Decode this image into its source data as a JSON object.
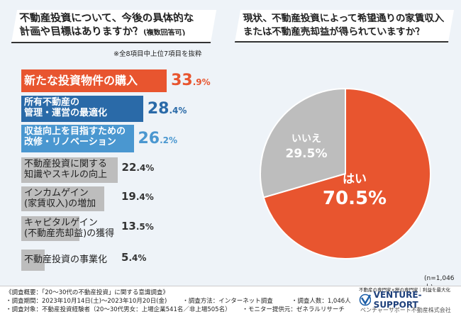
{
  "left": {
    "title_line1": "不動産投資について、今後の具体的な",
    "title_line2": "計画や目標はありますか？",
    "title_suffix": "(複数回答可)",
    "note": "※全8項目中上位7項目を抜粋"
  },
  "right": {
    "title_line1": "現状、不動産投資によって希望通りの家賃収入",
    "title_line2": "または不動産売却益が得られていますか？",
    "n": "(n=1,046人)"
  },
  "colors": {
    "orange": "#e8552f",
    "dark_blue": "#2a6aa8",
    "light_blue": "#4a97d0",
    "gray": "#bdbdbd"
  },
  "chart_data": [
    {
      "type": "bar",
      "orientation": "horizontal",
      "unit": "%",
      "categories": [
        "新たな投資物件の購入",
        "所有不動産の\n管理・運営の最適化",
        "収益向上を目指すための\n改修・リノベーション",
        "不動産投資に関する\n知識やスキルの向上",
        "インカムゲイン\n(家賃収入)の増加",
        "キャピタルゲイン\n(不動産売却益)の獲得",
        "不動産投資の事業化"
      ],
      "values": [
        33.9,
        28.4,
        26.2,
        22.4,
        19.4,
        13.5,
        5.4
      ],
      "labels": [
        "33.9%",
        "28.4%",
        "26.2%",
        "22.4%",
        "19.4%",
        "13.5%",
        "5.4%"
      ]
    },
    {
      "type": "pie",
      "categories": [
        "はい",
        "いいえ"
      ],
      "values": [
        70.5,
        29.5
      ],
      "labels": [
        "70.5%",
        "29.5%"
      ]
    }
  ],
  "footer": {
    "line1": "《調査概要：「20～30代の不動産投資」に関する意識調査》",
    "line2a": "・調査期間：2023年10月14日(土)～2023年10月20日(金)",
    "line2b": "・調査方法：インターネット調査",
    "line2c": "・調査人数：1,046人",
    "line3a": "・調査対象：不動産投資経験者（20～30代男女：上場企業541名／非上場505名）",
    "line3b": "・モニター提供元：ゼネラルリサーチ",
    "logo_tagline": "不動産の専門家×税の専門家｜利益を最大化",
    "logo_name": "VENTURE-SUPPORT",
    "logo_sub": "ベンチャーサポート不動産株式会社"
  }
}
